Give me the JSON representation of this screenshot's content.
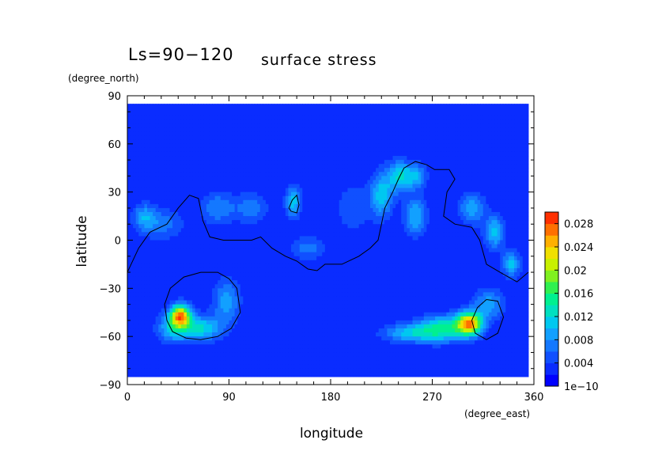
{
  "chart_data": {
    "type": "heatmap",
    "title_prefix": "Ls=90−120",
    "title": "surface stress",
    "xlabel": "longitude",
    "ylabel": "latitude",
    "x_units": "(degree_east)",
    "y_units": "(degree_north)",
    "xlim": [
      0,
      360
    ],
    "ylim": [
      -90,
      90
    ],
    "x_ticks": [
      "0",
      "90",
      "180",
      "270",
      "360"
    ],
    "y_ticks": [
      "90",
      "60",
      "30",
      "0",
      "−30",
      "−60",
      "−90"
    ],
    "x_tick_values": [
      0,
      90,
      180,
      270,
      360
    ],
    "y_tick_values": [
      90,
      60,
      30,
      0,
      -30,
      -60,
      -90
    ],
    "data_extent": {
      "lon": [
        0,
        355
      ],
      "lat": [
        -85,
        85
      ]
    },
    "colorbar": {
      "labels": [
        "1e−10",
        "0.004",
        "0.008",
        "0.012",
        "0.016",
        "0.02",
        "0.024",
        "0.028"
      ],
      "values": [
        0,
        0.004,
        0.008,
        0.012,
        0.016,
        0.02,
        0.024,
        0.028
      ],
      "max": 0.03,
      "steps": 15,
      "colors": [
        "#0000ff",
        "#0a2cff",
        "#1050ff",
        "#1478ff",
        "#12a0ff",
        "#00c8f0",
        "#00e0c0",
        "#00f090",
        "#30f050",
        "#80f020",
        "#c8f000",
        "#f0e000",
        "#ffb000",
        "#ff7000",
        "#ff3000"
      ]
    },
    "background_value": 0.002,
    "hotspots": [
      {
        "lon": 47,
        "lat": -47,
        "value": 0.022,
        "rlon": 9,
        "rlat": 7
      },
      {
        "lon": 65,
        "lat": -55,
        "value": 0.01,
        "rlon": 18,
        "rlat": 8
      },
      {
        "lon": 88,
        "lat": -38,
        "value": 0.007,
        "rlon": 12,
        "rlat": 14
      },
      {
        "lon": 40,
        "lat": -55,
        "value": 0.008,
        "rlon": 14,
        "rlat": 9
      },
      {
        "lon": 303,
        "lat": -52,
        "value": 0.022,
        "rlon": 11,
        "rlat": 7
      },
      {
        "lon": 280,
        "lat": -55,
        "value": 0.012,
        "rlon": 22,
        "rlat": 8
      },
      {
        "lon": 250,
        "lat": -58,
        "value": 0.008,
        "rlon": 25,
        "rlat": 6
      },
      {
        "lon": 320,
        "lat": -40,
        "value": 0.007,
        "rlon": 14,
        "rlat": 10
      },
      {
        "lon": 225,
        "lat": 28,
        "value": 0.009,
        "rlon": 10,
        "rlat": 14
      },
      {
        "lon": 240,
        "lat": 40,
        "value": 0.009,
        "rlon": 10,
        "rlat": 10
      },
      {
        "lon": 255,
        "lat": 15,
        "value": 0.008,
        "rlon": 10,
        "rlat": 12
      },
      {
        "lon": 255,
        "lat": 40,
        "value": 0.008,
        "rlon": 10,
        "rlat": 8
      },
      {
        "lon": 147,
        "lat": 24,
        "value": 0.009,
        "rlon": 7,
        "rlat": 10
      },
      {
        "lon": 325,
        "lat": 5,
        "value": 0.009,
        "rlon": 9,
        "rlat": 10
      },
      {
        "lon": 340,
        "lat": -15,
        "value": 0.009,
        "rlon": 8,
        "rlat": 8
      },
      {
        "lon": 305,
        "lat": 20,
        "value": 0.007,
        "rlon": 12,
        "rlat": 10
      },
      {
        "lon": 30,
        "lat": 10,
        "value": 0.005,
        "rlon": 20,
        "rlat": 10
      },
      {
        "lon": 15,
        "lat": 15,
        "value": 0.006,
        "rlon": 10,
        "rlat": 8
      },
      {
        "lon": 80,
        "lat": 20,
        "value": 0.006,
        "rlon": 15,
        "rlat": 10
      },
      {
        "lon": 110,
        "lat": 20,
        "value": 0.005,
        "rlon": 15,
        "rlat": 10
      },
      {
        "lon": 160,
        "lat": -5,
        "value": 0.005,
        "rlon": 15,
        "rlat": 8
      },
      {
        "lon": 200,
        "lat": 20,
        "value": 0.004,
        "rlon": 15,
        "rlat": 15
      }
    ],
    "contours": [
      [
        [
          0,
          -20
        ],
        [
          10,
          -5
        ],
        [
          20,
          5
        ],
        [
          35,
          10
        ],
        [
          45,
          20
        ],
        [
          55,
          28
        ],
        [
          63,
          26
        ],
        [
          67,
          12
        ],
        [
          73,
          2
        ],
        [
          85,
          0
        ],
        [
          110,
          0
        ],
        [
          118,
          2
        ],
        [
          128,
          -5
        ],
        [
          140,
          -10
        ],
        [
          150,
          -13
        ],
        [
          160,
          -18
        ],
        [
          168,
          -19
        ],
        [
          175,
          -15
        ],
        [
          190,
          -15
        ],
        [
          205,
          -10
        ],
        [
          215,
          -5
        ],
        [
          222,
          0
        ],
        [
          225,
          10
        ],
        [
          228,
          20
        ],
        [
          235,
          30
        ],
        [
          240,
          38
        ],
        [
          245,
          45
        ],
        [
          255,
          49
        ],
        [
          265,
          47
        ],
        [
          272,
          44
        ],
        [
          285,
          44
        ],
        [
          290,
          38
        ],
        [
          283,
          30
        ],
        [
          280,
          15
        ],
        [
          290,
          10
        ],
        [
          305,
          8
        ],
        [
          312,
          0
        ],
        [
          318,
          -15
        ],
        [
          330,
          -20
        ],
        [
          345,
          -26
        ],
        [
          355,
          -20
        ]
      ],
      [
        [
          143,
          20
        ],
        [
          146,
          25
        ],
        [
          150,
          28
        ],
        [
          152,
          22
        ],
        [
          150,
          17
        ],
        [
          145,
          18
        ],
        [
          143,
          20
        ]
      ],
      [
        [
          65,
          -20
        ],
        [
          50,
          -23
        ],
        [
          38,
          -30
        ],
        [
          33,
          -40
        ],
        [
          35,
          -50
        ],
        [
          40,
          -57
        ],
        [
          52,
          -61
        ],
        [
          65,
          -62
        ],
        [
          80,
          -60
        ],
        [
          92,
          -55
        ],
        [
          100,
          -45
        ],
        [
          97,
          -30
        ],
        [
          90,
          -24
        ],
        [
          80,
          -20
        ],
        [
          65,
          -20
        ]
      ],
      [
        [
          318,
          -37
        ],
        [
          310,
          -42
        ],
        [
          305,
          -50
        ],
        [
          308,
          -58
        ],
        [
          318,
          -62
        ],
        [
          328,
          -58
        ],
        [
          333,
          -48
        ],
        [
          328,
          -38
        ],
        [
          318,
          -37
        ]
      ]
    ]
  }
}
